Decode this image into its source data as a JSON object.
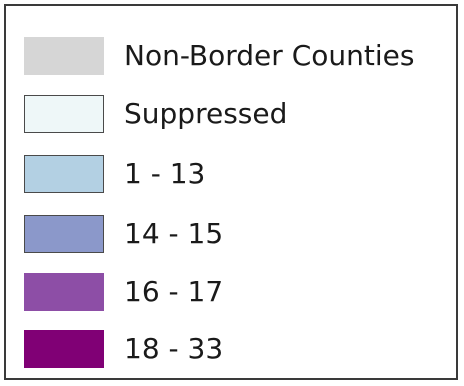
{
  "legend": {
    "items": [
      {
        "label": "Non-Border Counties",
        "color": "#d6d6d6",
        "outlined": false
      },
      {
        "label": "Suppressed",
        "color": "#eef7f8",
        "outlined": true
      },
      {
        "label": "1 - 13",
        "color": "#b3d0e3",
        "outlined": true
      },
      {
        "label": "14 - 15",
        "color": "#8b98ca",
        "outlined": true
      },
      {
        "label": "16 - 17",
        "color": "#8d4ea6",
        "outlined": false
      },
      {
        "label": "18 - 33",
        "color": "#800075",
        "outlined": false
      }
    ]
  }
}
